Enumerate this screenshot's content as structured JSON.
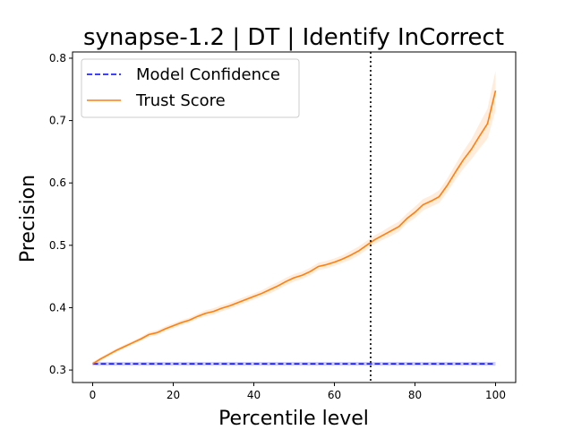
{
  "chart_data": {
    "type": "line",
    "title": "synapse-1.2 | DT | Identify InCorrect",
    "xlabel": "Percentile level",
    "ylabel": "Precision",
    "xlim": [
      -5,
      105
    ],
    "ylim": [
      0.28,
      0.81
    ],
    "x_ticks": [
      0,
      20,
      40,
      60,
      80,
      100
    ],
    "y_ticks": [
      0.3,
      0.4,
      0.5,
      0.6,
      0.7,
      0.8
    ],
    "x_tick_labels": [
      "0",
      "20",
      "40",
      "60",
      "80",
      "100"
    ],
    "y_tick_labels": [
      "0.3",
      "0.4",
      "0.5",
      "0.6",
      "0.7",
      "0.8"
    ],
    "grid": false,
    "legend_position": "top-left",
    "vline": {
      "x": 69,
      "style": "dotted",
      "color": "#000000"
    },
    "series": [
      {
        "name": "Model Confidence",
        "color": "#0000ff",
        "style": "dashed",
        "x": [
          0,
          100
        ],
        "values": [
          0.31,
          0.31
        ],
        "band": 0.003
      },
      {
        "name": "Trust Score",
        "color": "#ff7f0e",
        "style": "solid",
        "x": [
          0,
          2,
          4,
          6,
          8,
          10,
          12,
          14,
          16,
          18,
          20,
          22,
          24,
          26,
          28,
          30,
          32,
          34,
          36,
          38,
          40,
          42,
          44,
          46,
          48,
          50,
          52,
          54,
          56,
          58,
          60,
          62,
          64,
          66,
          68,
          70,
          72,
          74,
          76,
          78,
          80,
          82,
          84,
          86,
          88,
          90,
          92,
          94,
          96,
          98,
          100
        ],
        "values": [
          0.31,
          0.318,
          0.325,
          0.332,
          0.338,
          0.344,
          0.35,
          0.357,
          0.36,
          0.366,
          0.371,
          0.376,
          0.38,
          0.386,
          0.391,
          0.394,
          0.399,
          0.403,
          0.408,
          0.413,
          0.418,
          0.423,
          0.429,
          0.435,
          0.442,
          0.448,
          0.452,
          0.458,
          0.466,
          0.469,
          0.473,
          0.478,
          0.484,
          0.491,
          0.5,
          0.509,
          0.516,
          0.523,
          0.53,
          0.543,
          0.553,
          0.565,
          0.571,
          0.578,
          0.596,
          0.617,
          0.637,
          0.654,
          0.675,
          0.695,
          0.748
        ],
        "band_halfwidth": [
          0.003,
          0.003,
          0.003,
          0.003,
          0.003,
          0.003,
          0.003,
          0.004,
          0.004,
          0.004,
          0.004,
          0.004,
          0.004,
          0.004,
          0.005,
          0.005,
          0.005,
          0.005,
          0.005,
          0.005,
          0.005,
          0.005,
          0.006,
          0.006,
          0.006,
          0.006,
          0.006,
          0.006,
          0.006,
          0.006,
          0.006,
          0.006,
          0.007,
          0.007,
          0.007,
          0.007,
          0.007,
          0.008,
          0.008,
          0.008,
          0.009,
          0.009,
          0.009,
          0.01,
          0.011,
          0.012,
          0.014,
          0.016,
          0.02,
          0.024,
          0.032
        ]
      }
    ]
  }
}
